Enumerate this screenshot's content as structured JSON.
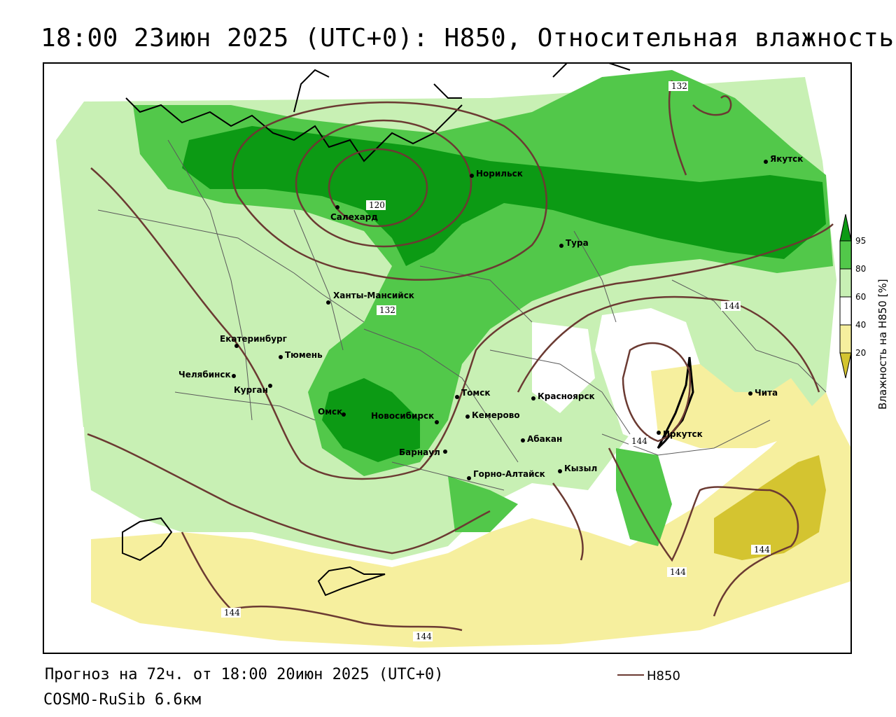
{
  "title": "18:00 23июн 2025 (UTC+0): H850, Относительная влажность",
  "footer": {
    "forecast": "Прогноз на 72ч. от 18:00 20июн 2025 (UTC+0)",
    "model": "COSMO-RuSib 6.6км"
  },
  "legend": {
    "line_label": "H850",
    "line_color": "#6b3a32"
  },
  "colorbar": {
    "title": "Влажность на H850 [%]",
    "ticks": [
      "95",
      "80",
      "60",
      "40",
      "20"
    ],
    "colors": {
      "very_dry": "#d4c430",
      "dry": "#f6ef9e",
      "white": "#ffffff",
      "light_green": "#c8f0b4",
      "green": "#52c84a",
      "dark_green": "#0c9a14"
    }
  },
  "cities": [
    {
      "name": "Якутск"
    },
    {
      "name": "Норильск"
    },
    {
      "name": "Салехард"
    },
    {
      "name": "Тура"
    },
    {
      "name": "Ханты-Мансийск"
    },
    {
      "name": "Екатеринбург"
    },
    {
      "name": "Тюмень"
    },
    {
      "name": "Челябинск"
    },
    {
      "name": "Курган"
    },
    {
      "name": "Омск"
    },
    {
      "name": "Новосибирск"
    },
    {
      "name": "Томск"
    },
    {
      "name": "Кемерово"
    },
    {
      "name": "Красноярск"
    },
    {
      "name": "Абакан"
    },
    {
      "name": "Барнаул"
    },
    {
      "name": "Кызыл"
    },
    {
      "name": "Горно-Алтайск"
    },
    {
      "name": "Иркутск"
    },
    {
      "name": "Чита"
    }
  ],
  "contour_labels": [
    "120",
    "132",
    "132",
    "144",
    "144",
    "144",
    "144",
    "144",
    "144"
  ]
}
